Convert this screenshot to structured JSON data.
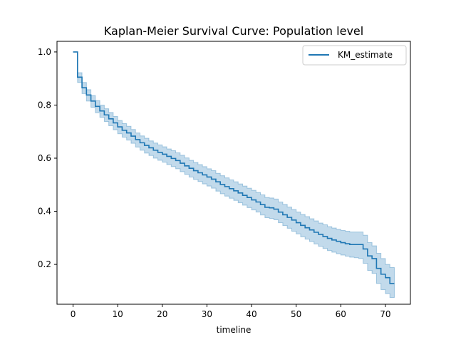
{
  "chart_data": {
    "type": "line",
    "title": "Kaplan-Meier Survival Curve: Population level",
    "xlabel": "timeline",
    "ylabel": "",
    "xlim": [
      -3.6,
      75.6
    ],
    "ylim": [
      0.05,
      1.04
    ],
    "xticks": [
      0,
      10,
      20,
      30,
      40,
      50,
      60,
      70
    ],
    "xtick_labels": [
      "0",
      "10",
      "20",
      "30",
      "40",
      "50",
      "60",
      "70"
    ],
    "yticks": [
      0.2,
      0.4,
      0.6,
      0.8,
      1.0
    ],
    "ytick_labels": [
      "0.2",
      "0.4",
      "0.6",
      "0.8",
      "1.0"
    ],
    "grid": false,
    "legend_position": "top-right",
    "colors": {
      "line": "#1f77b4",
      "band": "#1f77b4"
    },
    "series": [
      {
        "name": "KM_estimate",
        "step": "post",
        "x": [
          0,
          1,
          2,
          3,
          4,
          5,
          6,
          7,
          8,
          9,
          10,
          11,
          12,
          13,
          14,
          15,
          16,
          17,
          18,
          19,
          20,
          21,
          22,
          23,
          24,
          25,
          26,
          27,
          28,
          29,
          30,
          31,
          32,
          33,
          34,
          35,
          36,
          37,
          38,
          39,
          40,
          41,
          42,
          43,
          44,
          45,
          46,
          47,
          48,
          49,
          50,
          51,
          52,
          53,
          54,
          55,
          56,
          57,
          58,
          59,
          60,
          61,
          62,
          63,
          64,
          65,
          66,
          67,
          68,
          69,
          70,
          71,
          72
        ],
        "y": [
          1.0,
          0.905,
          0.865,
          0.838,
          0.815,
          0.795,
          0.778,
          0.763,
          0.748,
          0.733,
          0.718,
          0.705,
          0.695,
          0.683,
          0.67,
          0.658,
          0.648,
          0.639,
          0.63,
          0.622,
          0.615,
          0.607,
          0.599,
          0.591,
          0.581,
          0.571,
          0.562,
          0.553,
          0.545,
          0.537,
          0.529,
          0.521,
          0.511,
          0.501,
          0.493,
          0.485,
          0.477,
          0.469,
          0.46,
          0.452,
          0.443,
          0.435,
          0.425,
          0.415,
          0.413,
          0.408,
          0.397,
          0.387,
          0.377,
          0.367,
          0.357,
          0.347,
          0.338,
          0.33,
          0.321,
          0.313,
          0.305,
          0.298,
          0.292,
          0.287,
          0.282,
          0.278,
          0.275,
          0.275,
          0.275,
          0.258,
          0.232,
          0.222,
          0.185,
          0.163,
          0.15,
          0.128,
          0.128
        ],
        "ci_lower": [
          1.0,
          0.885,
          0.843,
          0.815,
          0.792,
          0.771,
          0.754,
          0.738,
          0.722,
          0.707,
          0.692,
          0.679,
          0.668,
          0.656,
          0.642,
          0.63,
          0.619,
          0.61,
          0.6,
          0.592,
          0.585,
          0.576,
          0.568,
          0.56,
          0.549,
          0.539,
          0.529,
          0.52,
          0.512,
          0.503,
          0.495,
          0.487,
          0.476,
          0.466,
          0.457,
          0.449,
          0.441,
          0.432,
          0.423,
          0.414,
          0.405,
          0.397,
          0.386,
          0.376,
          0.373,
          0.368,
          0.357,
          0.346,
          0.336,
          0.325,
          0.315,
          0.304,
          0.295,
          0.286,
          0.277,
          0.268,
          0.26,
          0.252,
          0.246,
          0.24,
          0.235,
          0.231,
          0.227,
          0.225,
          0.222,
          0.204,
          0.177,
          0.166,
          0.128,
          0.105,
          0.09,
          0.075,
          0.075
        ],
        "ci_upper": [
          1.0,
          0.922,
          0.885,
          0.858,
          0.836,
          0.817,
          0.8,
          0.786,
          0.772,
          0.757,
          0.742,
          0.73,
          0.72,
          0.708,
          0.695,
          0.684,
          0.675,
          0.665,
          0.657,
          0.65,
          0.643,
          0.635,
          0.628,
          0.62,
          0.611,
          0.601,
          0.592,
          0.584,
          0.576,
          0.568,
          0.56,
          0.553,
          0.543,
          0.534,
          0.526,
          0.518,
          0.511,
          0.503,
          0.495,
          0.487,
          0.479,
          0.471,
          0.462,
          0.452,
          0.45,
          0.446,
          0.435,
          0.426,
          0.416,
          0.407,
          0.397,
          0.388,
          0.38,
          0.372,
          0.364,
          0.356,
          0.349,
          0.342,
          0.337,
          0.332,
          0.328,
          0.325,
          0.322,
          0.322,
          0.322,
          0.31,
          0.282,
          0.27,
          0.242,
          0.222,
          0.2,
          0.188,
          0.188
        ]
      }
    ]
  }
}
